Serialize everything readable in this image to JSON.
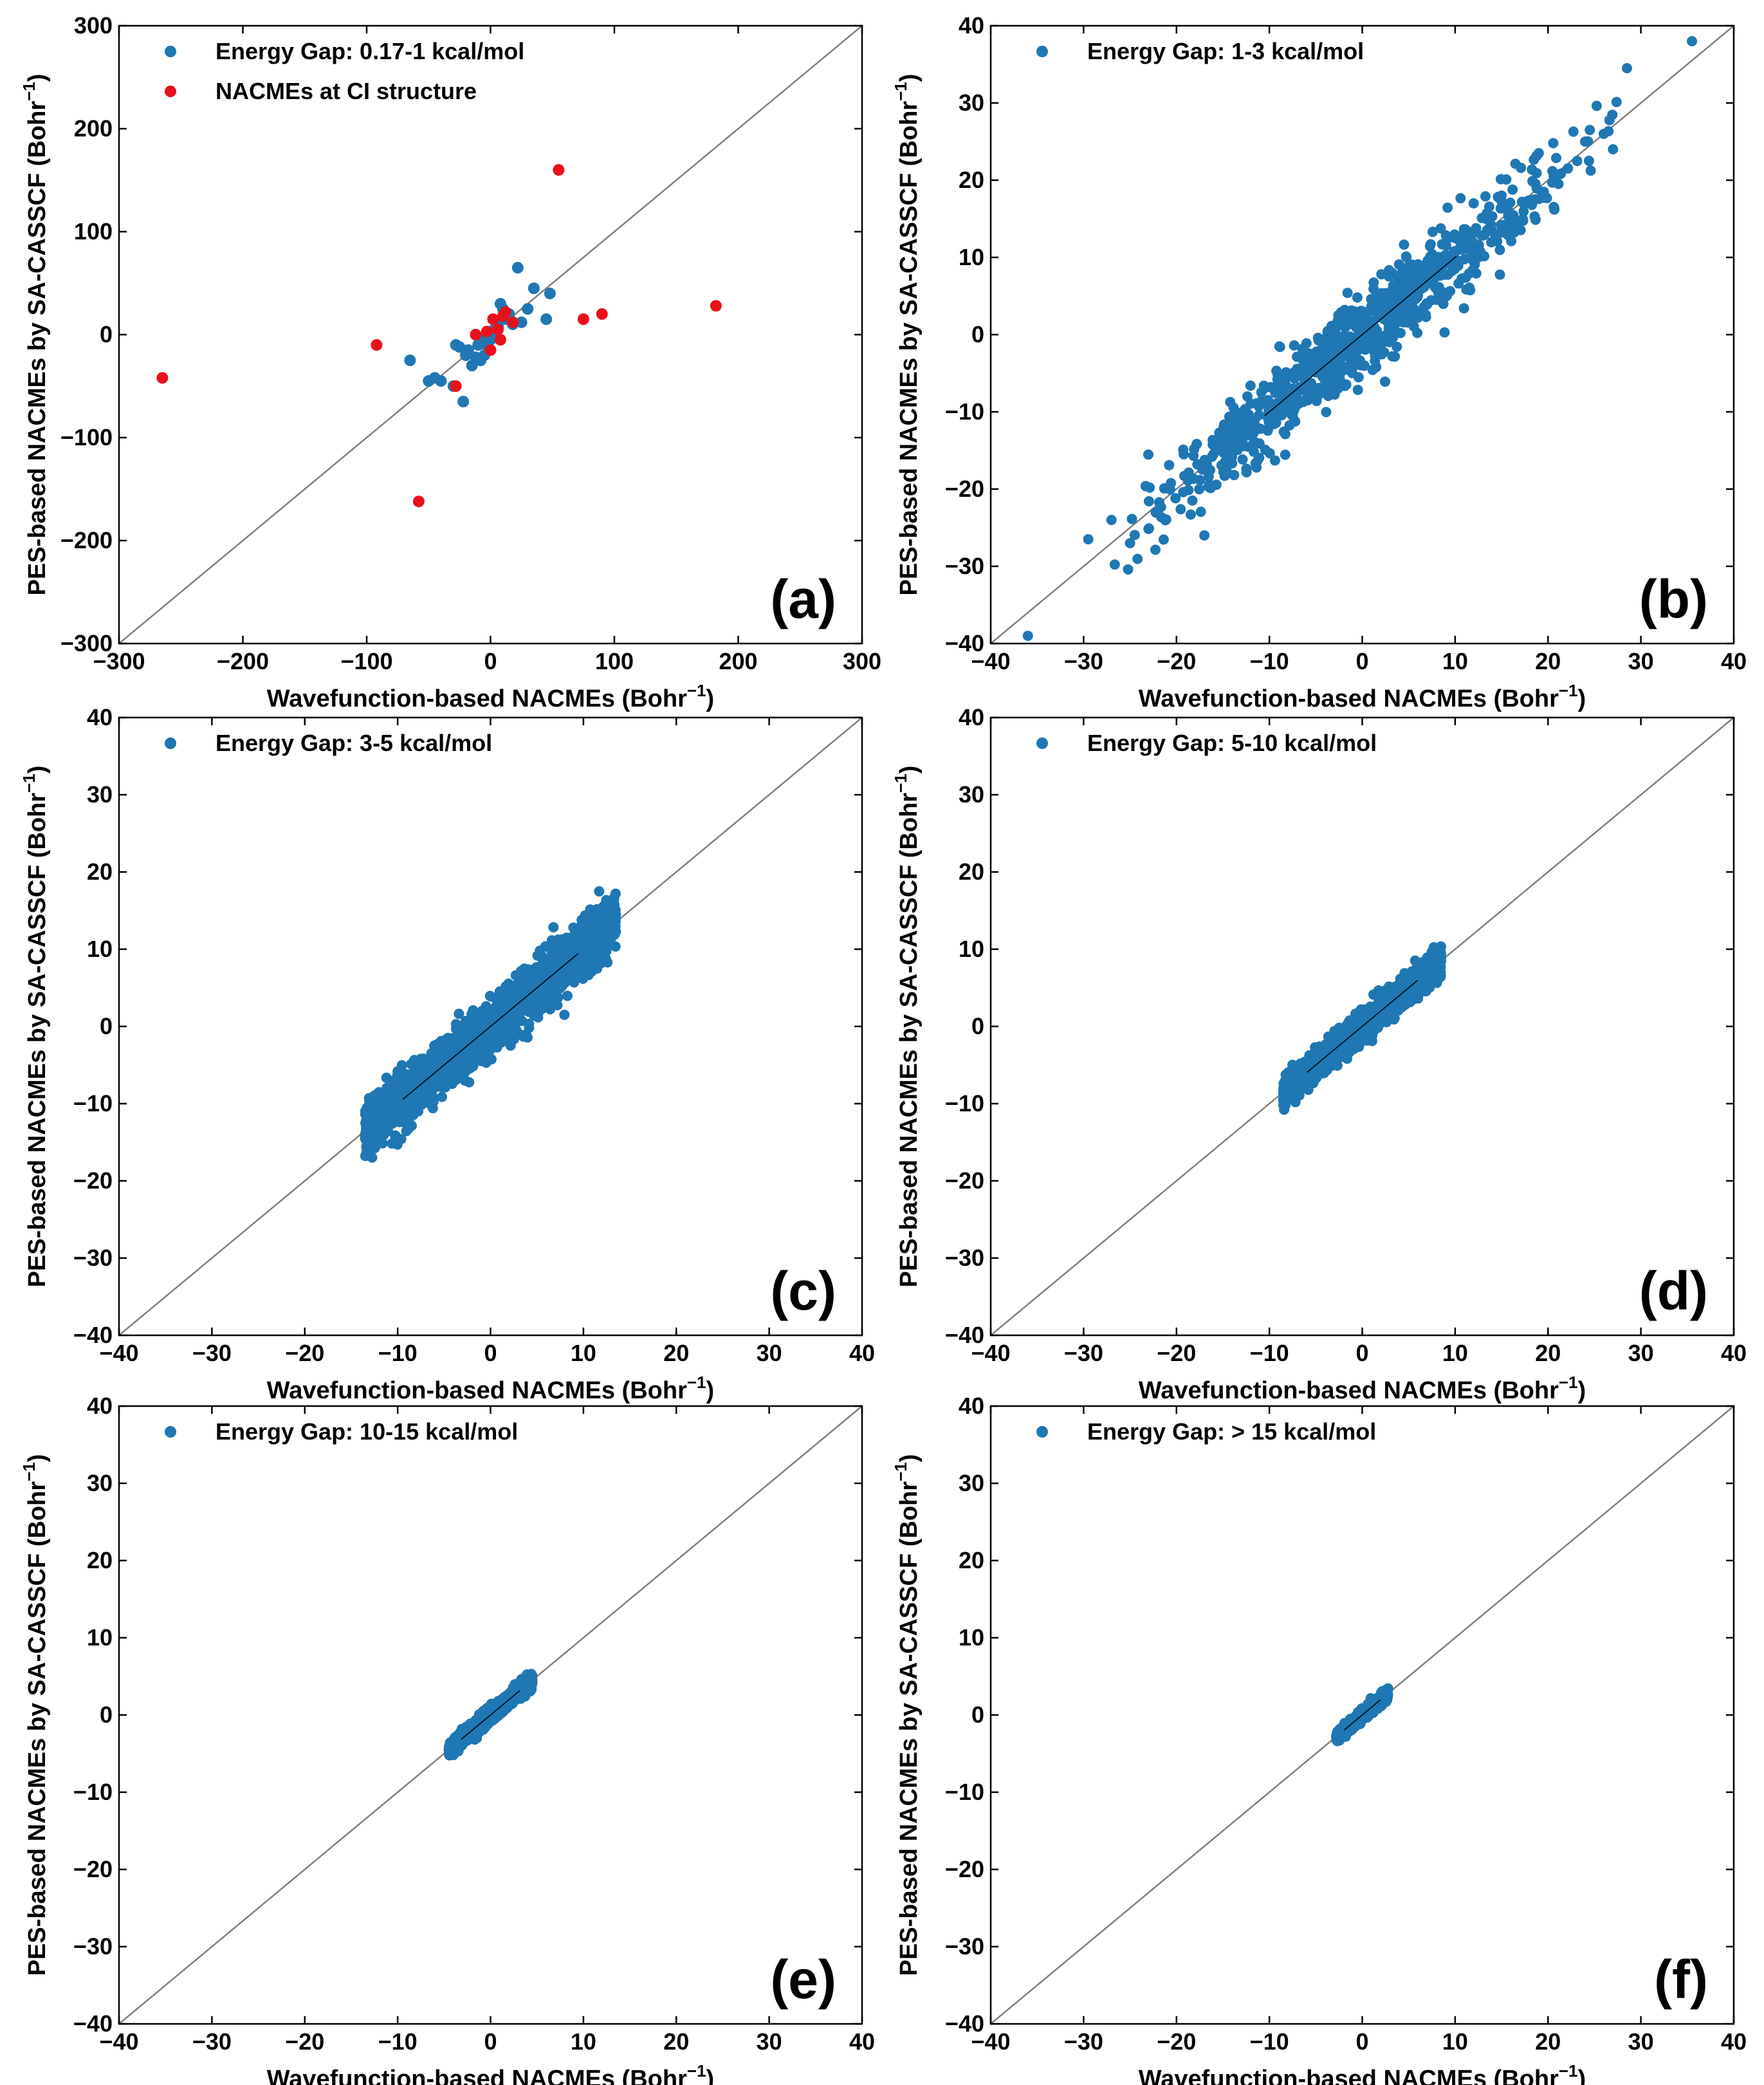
{
  "figure": {
    "xlabel": "Wavefunction-based NACMEs (Bohr",
    "ylabel": "PES-based NACMEs by SA-CASSCF (Bohr",
    "unit_superscript": "−1",
    "unit_close": ")"
  },
  "colors": {
    "blue": "#1f77b4",
    "red": "#e8111a",
    "diag": "#808080",
    "fit": "#000000"
  },
  "chart_data": [
    {
      "type": "scatter",
      "panel": "(a)",
      "xlim": [
        -300,
        300
      ],
      "ylim": [
        -300,
        300
      ],
      "xticks": [
        -300,
        -200,
        -100,
        0,
        100,
        200,
        300
      ],
      "yticks": [
        -300,
        -200,
        -100,
        0,
        100,
        200,
        300
      ],
      "xlabel": "Wavefunction-based NACMEs (Bohr−1)",
      "ylabel": "PES-based NACMEs by SA-CASSCF (Bohr−1)",
      "diagonal": true,
      "legend": "top-left",
      "series": [
        {
          "name": "Energy Gap: 0.17-1 kcal/mol",
          "color": "#1f77b4",
          "x": [
            -65,
            -50,
            -45,
            -40,
            -30,
            -28,
            -22,
            -20,
            -18,
            -15,
            -12,
            -10,
            -8,
            -5,
            -2,
            0,
            3,
            5,
            8,
            10,
            12,
            15,
            18,
            22,
            25,
            30,
            35,
            48,
            45,
            -25,
            2,
            -6,
            6
          ],
          "y": [
            -25,
            -45,
            -42,
            -45,
            -50,
            -10,
            -65,
            -20,
            -15,
            -30,
            -22,
            -10,
            -25,
            -20,
            -12,
            -5,
            5,
            10,
            30,
            25,
            15,
            20,
            10,
            65,
            12,
            25,
            45,
            40,
            15,
            -12,
            2,
            -3,
            8
          ]
        },
        {
          "name": "NACMEs at CI structure",
          "color": "#e8111a",
          "x": [
            -265,
            -92,
            -58,
            -28,
            -12,
            0,
            2,
            6,
            8,
            12,
            18,
            55,
            75,
            90,
            182,
            10,
            -3
          ],
          "y": [
            -42,
            -10,
            -162,
            -50,
            0,
            -15,
            15,
            5,
            -5,
            22,
            12,
            160,
            15,
            20,
            28,
            18,
            3
          ]
        }
      ]
    },
    {
      "type": "scatter",
      "panel": "(b)",
      "xlim": [
        -40,
        40
      ],
      "ylim": [
        -40,
        40
      ],
      "xticks": [
        -40,
        -30,
        -20,
        -10,
        0,
        10,
        20,
        30,
        40
      ],
      "yticks": [
        -40,
        -30,
        -20,
        -10,
        0,
        10,
        20,
        30,
        40
      ],
      "xlabel": "Wavefunction-based NACMEs (Bohr−1)",
      "ylabel": "PES-based NACMEs by SA-CASSCF (Bohr−1)",
      "diagonal": true,
      "legend": "top-left",
      "cloud": {
        "x_range": [
          -30,
          29
        ],
        "sigma": 2.6,
        "count": 900,
        "density": "center-heavy"
      },
      "series": [
        {
          "name": "Energy Gap: 1-3 kcal/mol",
          "color": "#1f77b4",
          "x": [
            -36,
            35.5,
            28.5,
            26,
            27,
            24.5,
            -29.5,
            -27,
            -25,
            -17,
            24,
            19,
            15,
            12
          ],
          "y": [
            -39,
            38,
            34.5,
            26,
            24,
            26.5,
            -26.5,
            -24,
            -27,
            -26,
            25,
            23.5,
            18,
            17
          ]
        }
      ]
    },
    {
      "type": "scatter",
      "panel": "(c)",
      "xlim": [
        -40,
        40
      ],
      "ylim": [
        -40,
        40
      ],
      "xticks": [
        -40,
        -30,
        -20,
        -10,
        0,
        10,
        20,
        30,
        40
      ],
      "yticks": [
        -40,
        -30,
        -20,
        -10,
        0,
        10,
        20,
        30,
        40
      ],
      "xlabel": "Wavefunction-based NACMEs (Bohr−1)",
      "ylabel": "PES-based NACMEs by SA-CASSCF (Bohr−1)",
      "diagonal": true,
      "legend": "top-left",
      "cloud": {
        "x_range": [
          -13.5,
          13.5
        ],
        "sigma": 1.6,
        "count": 2600,
        "density": "uniform"
      },
      "series": [
        {
          "name": "Energy Gap: 3-5 kcal/mol",
          "color": "#1f77b4",
          "x": [
            -13.5,
            13.5,
            -12,
            12.5
          ],
          "y": [
            -14.5,
            14.5,
            -10,
            13
          ]
        }
      ]
    },
    {
      "type": "scatter",
      "panel": "(d)",
      "xlim": [
        -40,
        40
      ],
      "ylim": [
        -40,
        40
      ],
      "xticks": [
        -40,
        -30,
        -20,
        -10,
        0,
        10,
        20,
        30,
        40
      ],
      "yticks": [
        -40,
        -30,
        -20,
        -10,
        0,
        10,
        20,
        30,
        40
      ],
      "xlabel": "Wavefunction-based NACMEs (Bohr−1)",
      "ylabel": "PES-based NACMEs by SA-CASSCF (Bohr−1)",
      "diagonal": true,
      "legend": "top-left",
      "cloud": {
        "x_range": [
          -8.5,
          8.5
        ],
        "sigma": 0.9,
        "count": 2200,
        "density": "uniform"
      },
      "series": [
        {
          "name": "Energy Gap: 5-10 kcal/mol",
          "color": "#1f77b4",
          "x": [
            -8.5,
            8.5
          ],
          "y": [
            -8.5,
            9
          ]
        }
      ]
    },
    {
      "type": "scatter",
      "panel": "(e)",
      "xlim": [
        -40,
        40
      ],
      "ylim": [
        -40,
        40
      ],
      "xticks": [
        -40,
        -30,
        -20,
        -10,
        0,
        10,
        20,
        30,
        40
      ],
      "yticks": [
        -40,
        -30,
        -20,
        -10,
        0,
        10,
        20,
        30,
        40
      ],
      "xlabel": "Wavefunction-based NACMEs (Bohr−1)",
      "ylabel": "PES-based NACMEs by SA-CASSCF (Bohr−1)",
      "diagonal": true,
      "legend": "top-left",
      "cloud": {
        "x_range": [
          -4.5,
          4.5
        ],
        "sigma": 0.45,
        "count": 1400,
        "density": "uniform"
      },
      "series": [
        {
          "name": "Energy Gap: 10-15 kcal/mol",
          "color": "#1f77b4",
          "x": [
            -4.5,
            4.5
          ],
          "y": [
            -4.5,
            4.5
          ]
        }
      ]
    },
    {
      "type": "scatter",
      "panel": "(f)",
      "xlim": [
        -40,
        40
      ],
      "ylim": [
        -40,
        40
      ],
      "xticks": [
        -40,
        -30,
        -20,
        -10,
        0,
        10,
        20,
        30,
        40
      ],
      "yticks": [
        -40,
        -30,
        -20,
        -10,
        0,
        10,
        20,
        30,
        40
      ],
      "xlabel": "Wavefunction-based NACMEs (Bohr−1)",
      "ylabel": "PES-based NACMEs by SA-CASSCF (Bohr−1)",
      "diagonal": true,
      "legend": "top-left",
      "cloud": {
        "x_range": [
          -2.8,
          2.8
        ],
        "sigma": 0.35,
        "count": 700,
        "density": "uniform"
      },
      "series": [
        {
          "name": "Energy Gap: > 15 kcal/mol",
          "color": "#1f77b4",
          "x": [
            -2.8,
            2.6
          ],
          "y": [
            -2.8,
            2.8
          ]
        }
      ]
    }
  ]
}
